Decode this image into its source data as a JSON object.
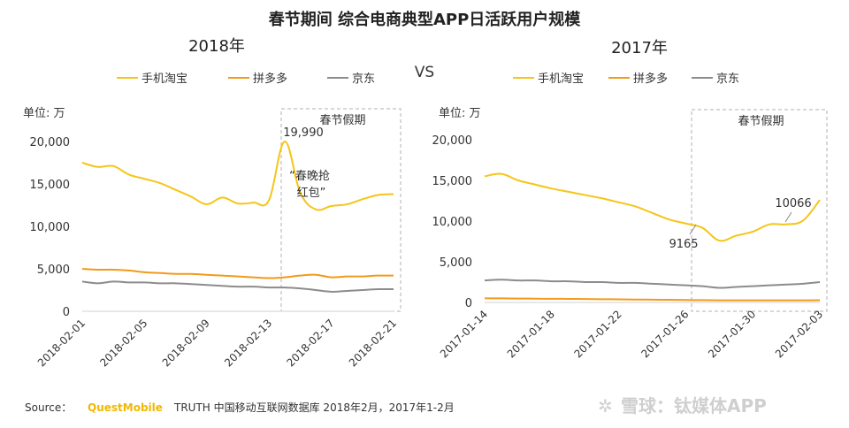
{
  "title": "春节期间 综合电商典型APP日活跃用户规模",
  "vs_label": "VS",
  "source": {
    "prefix": "Source：",
    "brand": "QuestMobile",
    "text": "TRUTH 中国移动互联网数据库 2018年2月，2017年1-2月"
  },
  "watermark": "雪球：钛媒体APP",
  "colors": {
    "taobao": "#f5c518",
    "pdd": "#f29a1a",
    "jd": "#8c8c8c",
    "box": "#b0b0b0",
    "axis": "#d0d0d0"
  },
  "chart_data": [
    {
      "type": "line",
      "title": "2018年",
      "unit_label": "单位: 万",
      "ylim": [
        0,
        20000
      ],
      "yticks": [
        0,
        5000,
        10000,
        15000,
        20000
      ],
      "ytick_labels": [
        "0",
        "5,000",
        "10,000",
        "15,000",
        "20,000"
      ],
      "x": [
        "2018-02-01",
        "2018-02-02",
        "2018-02-03",
        "2018-02-04",
        "2018-02-05",
        "2018-02-06",
        "2018-02-07",
        "2018-02-08",
        "2018-02-09",
        "2018-02-10",
        "2018-02-11",
        "2018-02-12",
        "2018-02-13",
        "2018-02-14",
        "2018-02-15",
        "2018-02-16",
        "2018-02-17",
        "2018-02-18",
        "2018-02-19",
        "2018-02-20",
        "2018-02-21"
      ],
      "xtick_labels": [
        "2018-02-01",
        "2018-02-05",
        "2018-02-09",
        "2018-02-13",
        "2018-02-17",
        "2018-02-21"
      ],
      "series": [
        {
          "name": "手机淘宝",
          "key": "taobao",
          "values": [
            17500,
            17000,
            17100,
            16100,
            15600,
            15100,
            14300,
            13500,
            12600,
            13400,
            12700,
            12800,
            13100,
            19990,
            14000,
            12000,
            12400,
            12600,
            13200,
            13700,
            13800
          ]
        },
        {
          "name": "拼多多",
          "key": "pdd",
          "values": [
            5000,
            4900,
            4900,
            4800,
            4600,
            4500,
            4400,
            4400,
            4300,
            4200,
            4100,
            4000,
            3900,
            4000,
            4200,
            4300,
            4000,
            4100,
            4100,
            4200,
            4200
          ]
        },
        {
          "name": "京东",
          "key": "jd",
          "values": [
            3500,
            3300,
            3500,
            3400,
            3400,
            3300,
            3300,
            3200,
            3100,
            3000,
            2900,
            2900,
            2800,
            2800,
            2700,
            2500,
            2300,
            2400,
            2500,
            2600,
            2600
          ]
        }
      ],
      "holiday_box": {
        "label": "春节假期",
        "from_index": 13,
        "to_index": 20
      },
      "annotations": [
        {
          "text": "19,990"
        },
        {
          "text": "“春晚抢"
        },
        {
          "text": "红包”"
        }
      ]
    },
    {
      "type": "line",
      "title": "2017年",
      "unit_label": "单位: 万",
      "ylim": [
        0,
        20000
      ],
      "yticks": [
        0,
        5000,
        10000,
        15000,
        20000
      ],
      "ytick_labels": [
        "0",
        "5,000",
        "10,000",
        "15,000",
        "20,000"
      ],
      "x": [
        "2017-01-14",
        "2017-01-15",
        "2017-01-16",
        "2017-01-17",
        "2017-01-18",
        "2017-01-19",
        "2017-01-20",
        "2017-01-21",
        "2017-01-22",
        "2017-01-23",
        "2017-01-24",
        "2017-01-25",
        "2017-01-26",
        "2017-01-27",
        "2017-01-28",
        "2017-01-29",
        "2017-01-30",
        "2017-01-31",
        "2017-02-01",
        "2017-02-02",
        "2017-02-03"
      ],
      "xtick_labels": [
        "2017-01-14",
        "2017-01-18",
        "2017-01-22",
        "2017-01-26",
        "2017-01-30",
        "2017-02-03"
      ],
      "series": [
        {
          "name": "手机淘宝",
          "key": "taobao",
          "values": [
            15500,
            15800,
            15000,
            14500,
            14000,
            13600,
            13200,
            12800,
            12300,
            11800,
            11000,
            10200,
            9700,
            9165,
            7600,
            8200,
            8700,
            9600,
            9600,
            10066,
            12600
          ]
        },
        {
          "name": "拼多多",
          "key": "pdd",
          "values": [
            500,
            500,
            480,
            460,
            450,
            440,
            420,
            400,
            380,
            360,
            340,
            320,
            300,
            280,
            260,
            260,
            260,
            260,
            260,
            260,
            270
          ]
        },
        {
          "name": "京东",
          "key": "jd",
          "values": [
            2700,
            2800,
            2700,
            2700,
            2600,
            2600,
            2500,
            2500,
            2400,
            2400,
            2300,
            2200,
            2100,
            2000,
            1800,
            1900,
            2000,
            2100,
            2200,
            2300,
            2500
          ]
        }
      ],
      "holiday_box": {
        "label": "春节假期",
        "from_index": 13,
        "to_index": 20
      },
      "annotations": [
        {
          "text": "9165"
        },
        {
          "text": "10066"
        }
      ]
    }
  ]
}
